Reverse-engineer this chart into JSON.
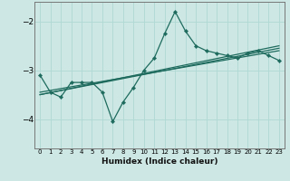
{
  "xlabel": "Humidex (Indice chaleur)",
  "background_color": "#cde8e4",
  "grid_color": "#b0d8d4",
  "line_color": "#1e6b5e",
  "xlim": [
    -0.5,
    23.5
  ],
  "ylim": [
    -4.6,
    -1.6
  ],
  "yticks": [
    -4,
    -3,
    -2
  ],
  "xticks": [
    0,
    1,
    2,
    3,
    4,
    5,
    6,
    7,
    8,
    9,
    10,
    11,
    12,
    13,
    14,
    15,
    16,
    17,
    18,
    19,
    20,
    21,
    22,
    23
  ],
  "series1_x": [
    0,
    1,
    2,
    3,
    4,
    5,
    6,
    7,
    8,
    9,
    10,
    11,
    12,
    13,
    14,
    15,
    16,
    17,
    18,
    19,
    20,
    21,
    22,
    23
  ],
  "series1_y": [
    -3.1,
    -3.45,
    -3.55,
    -3.25,
    -3.25,
    -3.25,
    -3.45,
    -4.05,
    -3.65,
    -3.35,
    -3.0,
    -2.75,
    -2.25,
    -1.8,
    -2.2,
    -2.5,
    -2.6,
    -2.65,
    -2.7,
    -2.75,
    -2.65,
    -2.6,
    -2.7,
    -2.8
  ],
  "trend1_x": [
    0,
    23
  ],
  "trend1_y": [
    -3.5,
    -2.5
  ],
  "trend2_x": [
    0,
    23
  ],
  "trend2_y": [
    -3.5,
    -2.55
  ],
  "trend3_x": [
    0,
    23
  ],
  "trend3_y": [
    -3.45,
    -2.6
  ]
}
